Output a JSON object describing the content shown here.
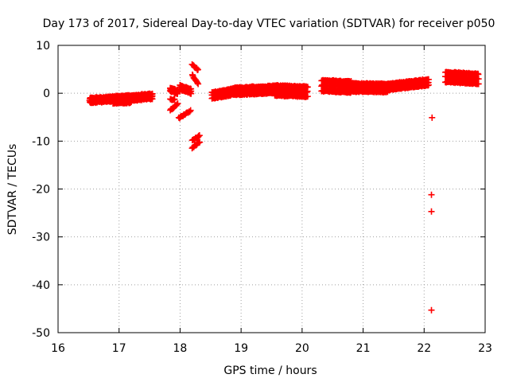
{
  "chart_data": {
    "type": "scatter",
    "title": "Day 173 of 2017, Sidereal Day-to-day VTEC variation (SDTVAR) for receiver p050",
    "xlabel": "GPS time / hours",
    "ylabel": "SDTVAR / TECUs",
    "xlim": [
      16,
      23
    ],
    "ylim": [
      -50,
      10
    ],
    "xticks": [
      "16",
      "17",
      "18",
      "19",
      "20",
      "21",
      "22",
      "23"
    ],
    "yticks": [
      "10",
      "0",
      "-10",
      "-20",
      "-30",
      "-40",
      "-50"
    ],
    "grid": true,
    "marker": "plus",
    "color": "#ff0000",
    "series": [
      {
        "name": "SDTVAR",
        "segments": [
          {
            "x0": 16.52,
            "x1": 16.9,
            "y0": -1.5,
            "y1": -1.2,
            "spread": 0.9
          },
          {
            "x0": 16.9,
            "x1": 17.2,
            "y0": -1.4,
            "y1": -1.2,
            "spread": 1.4
          },
          {
            "x0": 17.2,
            "x1": 17.55,
            "y0": -1.0,
            "y1": -0.6,
            "spread": 1.0
          },
          {
            "x0": 17.84,
            "x1": 17.96,
            "y0": 0.8,
            "y1": 0.2,
            "spread": 0.6
          },
          {
            "x0": 17.84,
            "x1": 17.92,
            "y0": -1.2,
            "y1": -1.4,
            "spread": 0.4
          },
          {
            "x0": 17.84,
            "x1": 17.96,
            "y0": -3.5,
            "y1": -2.2,
            "spread": 0.3
          },
          {
            "x0": 18.0,
            "x1": 18.18,
            "y0": 1.2,
            "y1": 0.4,
            "spread": 0.8
          },
          {
            "x0": 17.98,
            "x1": 18.18,
            "y0": -5.2,
            "y1": -3.6,
            "spread": 0.3
          },
          {
            "x0": 18.2,
            "x1": 18.3,
            "y0": 6.0,
            "y1": 4.8,
            "spread": 0.3
          },
          {
            "x0": 18.2,
            "x1": 18.3,
            "y0": 3.8,
            "y1": 1.8,
            "spread": 0.3
          },
          {
            "x0": 18.2,
            "x1": 18.32,
            "y0": -9.9,
            "y1": -8.9,
            "spread": 0.3
          },
          {
            "x0": 18.2,
            "x1": 18.32,
            "y0": -11.4,
            "y1": -10.2,
            "spread": 0.3
          },
          {
            "x0": 18.52,
            "x1": 18.9,
            "y0": -0.5,
            "y1": 0.4,
            "spread": 1.2
          },
          {
            "x0": 18.9,
            "x1": 19.55,
            "y0": 0.4,
            "y1": 0.8,
            "spread": 1.4
          },
          {
            "x0": 19.55,
            "x1": 20.1,
            "y0": 0.6,
            "y1": 0.3,
            "spread": 2.0
          },
          {
            "x0": 20.32,
            "x1": 20.8,
            "y0": 1.6,
            "y1": 1.3,
            "spread": 2.2
          },
          {
            "x0": 20.8,
            "x1": 21.4,
            "y0": 1.2,
            "y1": 1.1,
            "spread": 1.6
          },
          {
            "x0": 21.4,
            "x1": 22.08,
            "y0": 1.3,
            "y1": 2.3,
            "spread": 1.2
          },
          {
            "x0": 22.35,
            "x1": 22.9,
            "y0": 3.4,
            "y1": 3.0,
            "spread": 2.0
          }
        ],
        "points": [
          {
            "x": 22.13,
            "y": -5.1
          },
          {
            "x": 22.12,
            "y": -21.2
          },
          {
            "x": 22.12,
            "y": -24.7
          },
          {
            "x": 22.12,
            "y": -45.3
          }
        ]
      }
    ]
  }
}
